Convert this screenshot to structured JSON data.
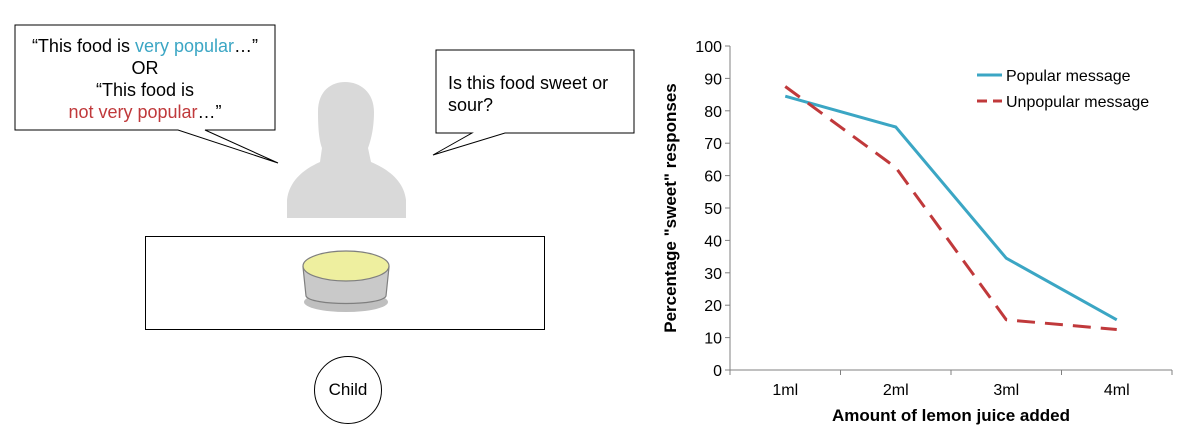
{
  "left_panel": {
    "speech_left": {
      "line1_prefix": "“This food is ",
      "line1_highlight": "very popular",
      "line1_suffix": "…”",
      "line2": "OR",
      "line3": "“This food is",
      "line4_highlight": "not very popular",
      "line4_suffix": "…”"
    },
    "speech_right": {
      "text": "Is this food sweet or sour?"
    },
    "child_label": "Child"
  },
  "chart_data": {
    "type": "line",
    "categories": [
      "1ml",
      "2ml",
      "3ml",
      "4ml"
    ],
    "series": [
      {
        "name": "Popular message",
        "values": [
          84.5,
          75,
          34.5,
          15.5
        ],
        "color": "#3ba6c4",
        "dash": "solid"
      },
      {
        "name": "Unpopular message",
        "values": [
          87.5,
          62.5,
          15.5,
          12.5
        ],
        "color": "#c0393b",
        "dash": "dashed"
      }
    ],
    "xlabel": "Amount of lemon juice added",
    "ylabel": "Percentage \"sweet\" responses",
    "ylim": [
      0,
      100
    ],
    "yticks": [
      0,
      10,
      20,
      30,
      40,
      50,
      60,
      70,
      80,
      90,
      100
    ],
    "grid": false,
    "legend_position": "top-right"
  }
}
